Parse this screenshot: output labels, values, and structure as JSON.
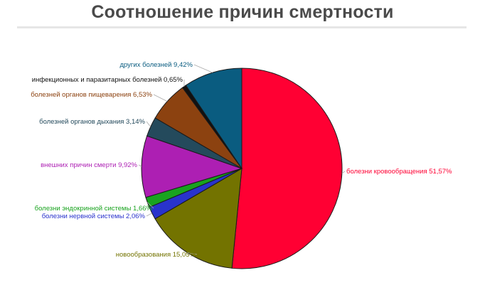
{
  "title": "Соотношение причин смертности",
  "chart_data": {
    "type": "pie",
    "categories": [
      "болезни кровообращения",
      "новообразования",
      "болезни нервной системы",
      "болезни эндокринной системы",
      "внешних причин смерти",
      "болезней органов дыхания",
      "болезней органов пищеварения",
      "инфекционных и паразитарных болезней",
      "других болезней"
    ],
    "values": [
      51.57,
      15.05,
      2.06,
      1.66,
      9.92,
      3.14,
      6.53,
      0.65,
      9.42
    ],
    "labels": [
      "болезни кровообращения 51,57%",
      "новообразования 15,05%",
      "болезни нервной системы 2,06%",
      "болезни эндокринной системы 1,66%",
      "внешних причин смерти 9,92%",
      "болезней органов дыхания 3,14%",
      "болезней органов пищеварения 6,53%",
      "инфекционных и паразитарных болезней 0,65%",
      "других болезней 9,42%"
    ],
    "colors": [
      "#ff0033",
      "#737300",
      "#2933cc",
      "#19a31f",
      "#ad1fb3",
      "#244a5c",
      "#8c4210",
      "#111111",
      "#0a5c80"
    ],
    "label_colors": [
      "#ff0033",
      "#737300",
      "#2933cc",
      "#19a31f",
      "#ad1fb3",
      "#244a5c",
      "#8c4210",
      "#111111",
      "#0a5c80"
    ]
  }
}
